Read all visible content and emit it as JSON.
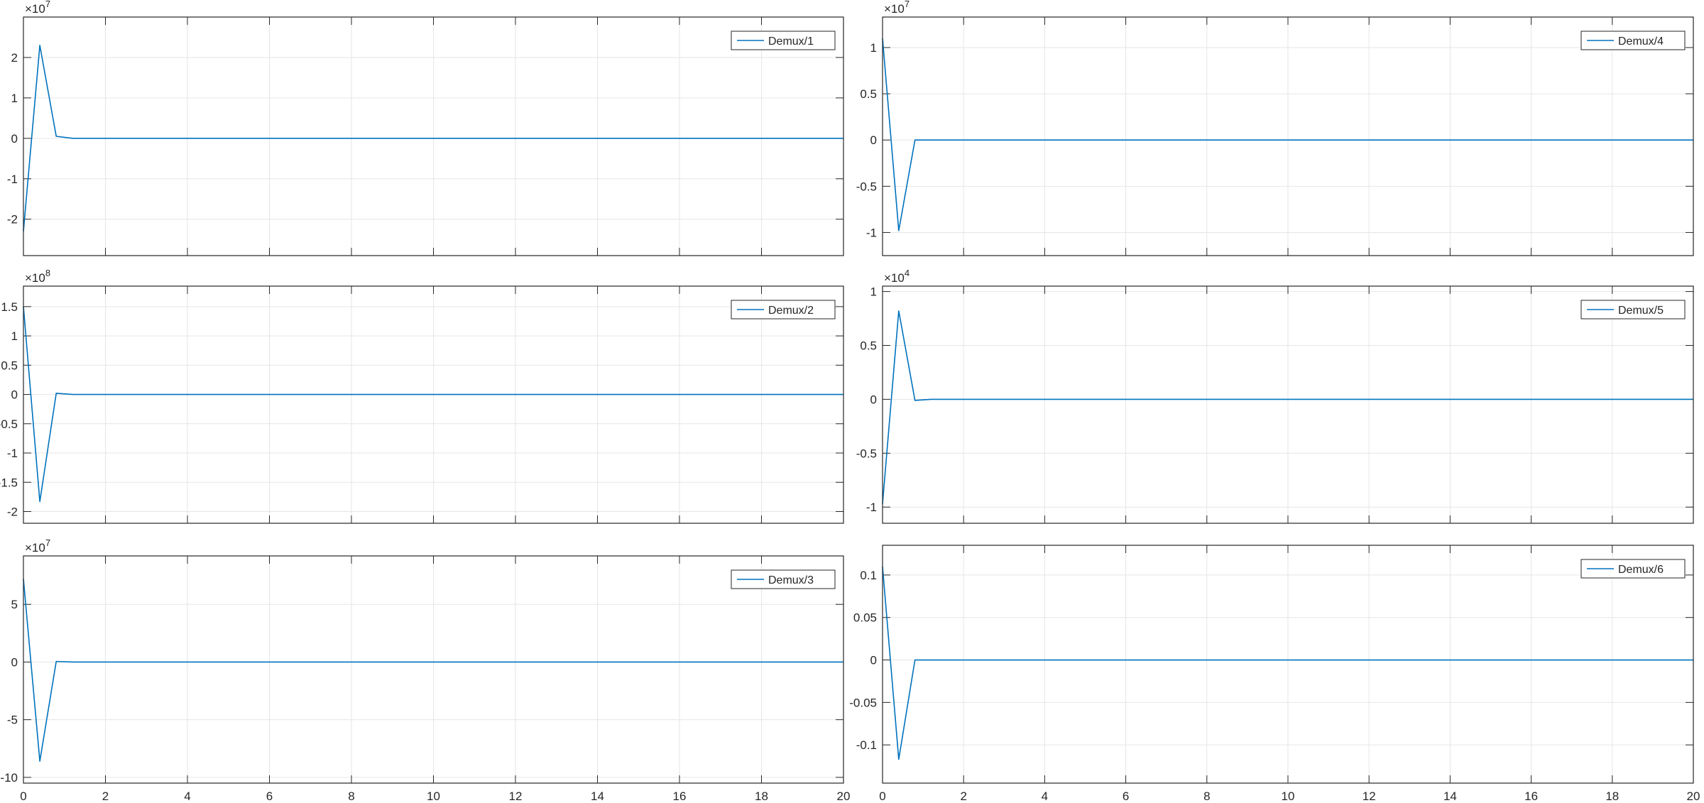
{
  "chart_data": [
    {
      "type": "line",
      "legend": "Demux/1",
      "legend_position": "top-right",
      "grid": true,
      "exponent": "7",
      "xlim": [
        0,
        20
      ],
      "ylim": [
        -2.9,
        3.0
      ],
      "xticks": [
        "0",
        "2",
        "4",
        "6",
        "8",
        "10",
        "12",
        "14",
        "16",
        "18",
        "20"
      ],
      "yticks": [
        {
          "v": -2,
          "label": "-2"
        },
        {
          "v": -1,
          "label": "-1"
        },
        {
          "v": 0,
          "label": "0"
        },
        {
          "v": 1,
          "label": "1"
        },
        {
          "v": 2,
          "label": "2"
        }
      ],
      "series": [
        {
          "color": "#0072BD",
          "x": [
            0,
            0.4,
            0.8,
            1.2,
            20
          ],
          "y": [
            -2.3,
            2.3,
            0.05,
            0,
            0
          ]
        }
      ]
    },
    {
      "type": "line",
      "legend": "Demux/2",
      "legend_position": "top-right",
      "grid": true,
      "exponent": "8",
      "xlim": [
        0,
        20
      ],
      "ylim": [
        -2.2,
        1.85
      ],
      "xticks": [
        "0",
        "2",
        "4",
        "6",
        "8",
        "10",
        "12",
        "14",
        "16",
        "18",
        "20"
      ],
      "yticks": [
        {
          "v": -2,
          "label": "-2"
        },
        {
          "v": -1.5,
          "label": "-1.5"
        },
        {
          "v": -1,
          "label": "-1"
        },
        {
          "v": -0.5,
          "label": "-0.5"
        },
        {
          "v": 0,
          "label": "0"
        },
        {
          "v": 0.5,
          "label": "0.5"
        },
        {
          "v": 1,
          "label": "1"
        },
        {
          "v": 1.5,
          "label": "1.5"
        }
      ],
      "series": [
        {
          "color": "#0072BD",
          "x": [
            0,
            0.4,
            0.8,
            1.2,
            20
          ],
          "y": [
            1.5,
            -1.83,
            0.02,
            0,
            0
          ]
        }
      ]
    },
    {
      "type": "line",
      "legend": "Demux/3",
      "legend_position": "top-right",
      "grid": true,
      "exponent": "7",
      "xlim": [
        0,
        20
      ],
      "ylim": [
        -10.5,
        9.2
      ],
      "xticks": [
        "0",
        "2",
        "4",
        "6",
        "8",
        "10",
        "12",
        "14",
        "16",
        "18",
        "20"
      ],
      "yticks": [
        {
          "v": -10,
          "label": "-10"
        },
        {
          "v": -5,
          "label": "-5"
        },
        {
          "v": 0,
          "label": "0"
        },
        {
          "v": 5,
          "label": "5"
        }
      ],
      "series": [
        {
          "color": "#0072BD",
          "x": [
            0,
            0.4,
            0.8,
            1.2,
            20
          ],
          "y": [
            7.2,
            -8.6,
            0.05,
            0,
            0
          ]
        }
      ]
    },
    {
      "type": "line",
      "legend": "Demux/4",
      "legend_position": "top-right",
      "grid": true,
      "exponent": "7",
      "xlim": [
        0,
        20
      ],
      "ylim": [
        -1.25,
        1.33
      ],
      "xticks": [
        "0",
        "2",
        "4",
        "6",
        "8",
        "10",
        "12",
        "14",
        "16",
        "18",
        "20"
      ],
      "yticks": [
        {
          "v": -1,
          "label": "-1"
        },
        {
          "v": -0.5,
          "label": "-0.5"
        },
        {
          "v": 0,
          "label": "0"
        },
        {
          "v": 0.5,
          "label": "0.5"
        },
        {
          "v": 1,
          "label": "1"
        }
      ],
      "series": [
        {
          "color": "#0072BD",
          "x": [
            0,
            0.4,
            0.8,
            1.2,
            20
          ],
          "y": [
            1.1,
            -0.98,
            0.0,
            0,
            0
          ]
        }
      ]
    },
    {
      "type": "line",
      "legend": "Demux/5",
      "legend_position": "top-right",
      "grid": true,
      "exponent": "4",
      "xlim": [
        0,
        20
      ],
      "ylim": [
        -1.15,
        1.05
      ],
      "xticks": [
        "0",
        "2",
        "4",
        "6",
        "8",
        "10",
        "12",
        "14",
        "16",
        "18",
        "20"
      ],
      "yticks": [
        {
          "v": -1,
          "label": "-1"
        },
        {
          "v": -0.5,
          "label": "-0.5"
        },
        {
          "v": 0,
          "label": "0"
        },
        {
          "v": 0.5,
          "label": "0.5"
        },
        {
          "v": 1,
          "label": "1"
        }
      ],
      "series": [
        {
          "color": "#0072BD",
          "x": [
            0,
            0.4,
            0.8,
            1.2,
            20
          ],
          "y": [
            -0.97,
            0.82,
            -0.01,
            0,
            0
          ]
        }
      ]
    },
    {
      "type": "line",
      "legend": "Demux/6",
      "legend_position": "top-right",
      "grid": true,
      "exponent": "",
      "xlim": [
        0,
        20
      ],
      "ylim": [
        -0.145,
        0.135
      ],
      "xticks": [
        "0",
        "2",
        "4",
        "6",
        "8",
        "10",
        "12",
        "14",
        "16",
        "18",
        "20"
      ],
      "yticks": [
        {
          "v": -0.1,
          "label": "-0.1"
        },
        {
          "v": -0.05,
          "label": "-0.05"
        },
        {
          "v": 0,
          "label": "0"
        },
        {
          "v": 0.05,
          "label": "0.05"
        },
        {
          "v": 0.1,
          "label": "0.1"
        }
      ],
      "series": [
        {
          "color": "#0072BD",
          "x": [
            0,
            0.4,
            0.8,
            1.2,
            20
          ],
          "y": [
            0.11,
            -0.117,
            0.0,
            0,
            0
          ]
        }
      ]
    }
  ]
}
